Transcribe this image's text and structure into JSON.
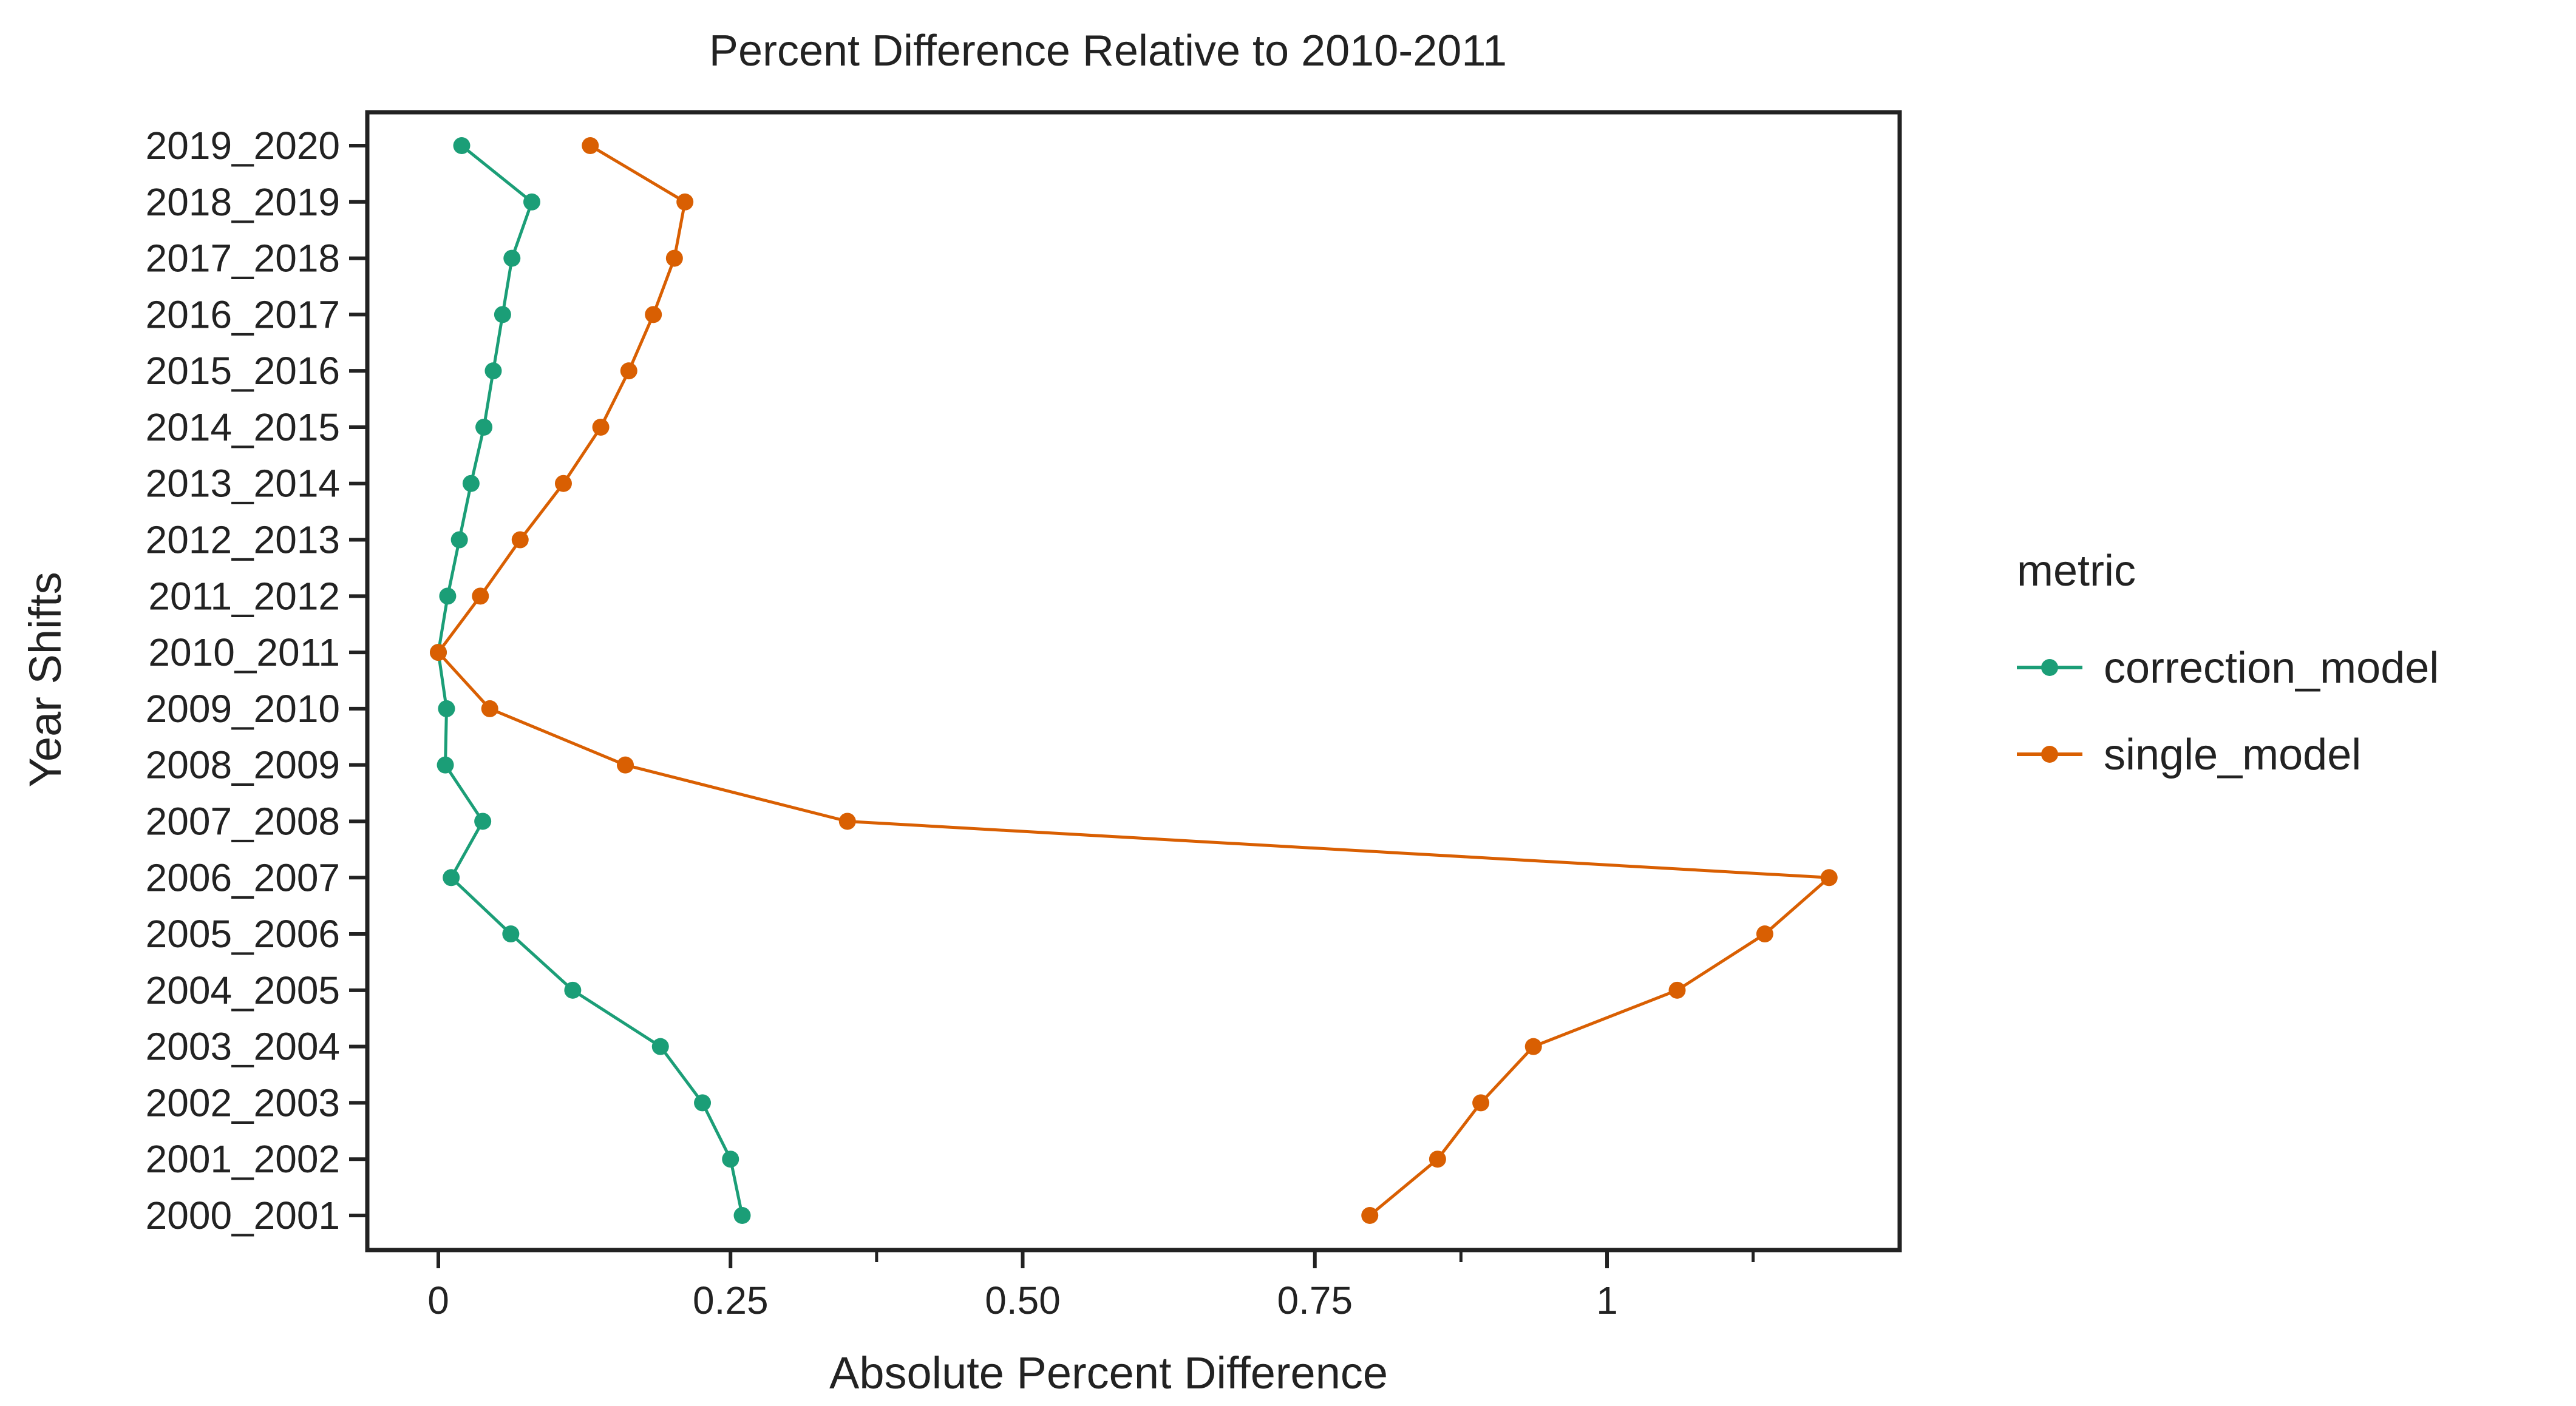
{
  "chart_data": {
    "type": "line",
    "title": "Percent Difference Relative to 2010-2011",
    "xlabel": "Absolute Percent Difference",
    "ylabel": "Year Shifts",
    "xlim": [
      -0.06,
      1.25
    ],
    "x_ticks": [
      {
        "value": 0,
        "label": "0"
      },
      {
        "value": 0.25,
        "label": "0.25"
      },
      {
        "value": 0.5,
        "label": "0.50"
      },
      {
        "value": 0.75,
        "label": "0.75"
      },
      {
        "value": 1,
        "label": "1"
      }
    ],
    "x_minor_ticks": [
      0.375,
      0.875,
      1.125
    ],
    "categories": [
      "2000_2001",
      "2001_2002",
      "2002_2003",
      "2003_2004",
      "2004_2005",
      "2005_2006",
      "2006_2007",
      "2007_2008",
      "2008_2009",
      "2009_2010",
      "2010_2011",
      "2011_2012",
      "2012_2013",
      "2013_2014",
      "2014_2015",
      "2015_2016",
      "2016_2017",
      "2017_2018",
      "2018_2019",
      "2019_2020"
    ],
    "grid": false,
    "legend": {
      "title": "metric",
      "position": "right"
    },
    "series": [
      {
        "name": "correction_model",
        "color": "#1b9e77",
        "values": [
          0.26,
          0.25,
          0.226,
          0.19,
          0.115,
          0.062,
          0.011,
          0.038,
          0.006,
          0.007,
          0.0,
          0.008,
          0.018,
          0.028,
          0.039,
          0.047,
          0.055,
          0.063,
          0.08,
          0.02
        ]
      },
      {
        "name": "single_model",
        "color": "#d95f02",
        "values": [
          0.797,
          0.855,
          0.892,
          0.937,
          1.06,
          1.135,
          1.19,
          0.35,
          0.16,
          0.044,
          0.0,
          0.036,
          0.07,
          0.107,
          0.139,
          0.163,
          0.184,
          0.202,
          0.211,
          0.13
        ]
      }
    ]
  }
}
